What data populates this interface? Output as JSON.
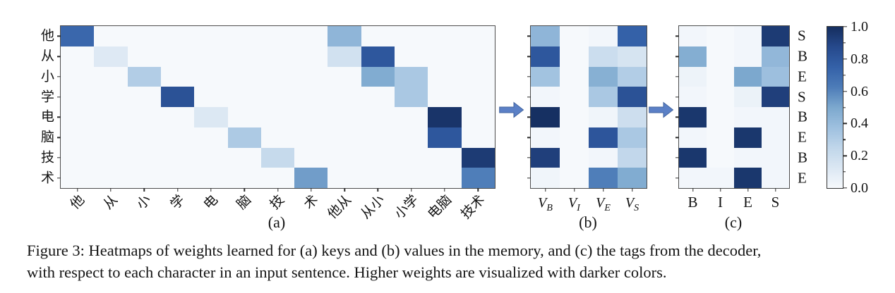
{
  "figure": {
    "caption": {
      "line1": "Figure 3: Heatmaps of weights learned for (a) keys and (b) values in the memory, and (c) the tags from the decoder,",
      "line2": "with respect to each character in an input sentence. Higher weights are visualized with darker colors."
    }
  },
  "colors": {
    "background": "#ffffff",
    "plot_border": "#4d4d4d",
    "tick": "#2b2b2b",
    "text": "#131313",
    "arrow_fill": "#5b80c6",
    "arrow_stroke": "#41639f",
    "colormap_stops": [
      "#f6f9fc",
      "#dbe7f3",
      "#c0d6ea",
      "#9ec0df",
      "#7ca8ce",
      "#4d7cb8",
      "#3461a8",
      "#26498c",
      "#152e5e"
    ]
  },
  "chart_data": [
    {
      "id": "a",
      "type": "heatmap",
      "label": "(a)",
      "name": "keys",
      "rows": [
        "他",
        "从",
        "小",
        "学",
        "电",
        "脑",
        "技",
        "术"
      ],
      "columns": [
        "他",
        "从",
        "小",
        "学",
        "电",
        "脑",
        "技",
        "术",
        "他从",
        "从小",
        "小学",
        "电脑",
        "技术"
      ],
      "values": [
        [
          0.72,
          0,
          0,
          0,
          0,
          0,
          0,
          0,
          0.43,
          0,
          0,
          0,
          0
        ],
        [
          0,
          0.11,
          0,
          0,
          0,
          0,
          0,
          0,
          0.17,
          0.8,
          0,
          0,
          0
        ],
        [
          0,
          0,
          0.3,
          0,
          0,
          0,
          0,
          0,
          0,
          0.48,
          0.33,
          0,
          0
        ],
        [
          0,
          0,
          0,
          0.83,
          0,
          0,
          0,
          0,
          0,
          0,
          0.33,
          0,
          0
        ],
        [
          0,
          0,
          0,
          0,
          0.12,
          0,
          0,
          0,
          0,
          0,
          0,
          0.97,
          0
        ],
        [
          0,
          0,
          0,
          0,
          0,
          0.32,
          0,
          0,
          0,
          0,
          0,
          0.8,
          0
        ],
        [
          0,
          0,
          0,
          0,
          0,
          0,
          0.22,
          0,
          0,
          0,
          0,
          0,
          0.94
        ],
        [
          0,
          0,
          0,
          0,
          0,
          0,
          0,
          0.53,
          0,
          0,
          0,
          0,
          0.62
        ]
      ]
    },
    {
      "id": "b",
      "type": "heatmap",
      "label": "(b)",
      "name": "values-in-memory",
      "columns": [
        "V_B",
        "V_I",
        "V_E",
        "V_S"
      ],
      "values": [
        [
          0.43,
          0,
          0.02,
          0.75
        ],
        [
          0.8,
          0,
          0.2,
          0.15
        ],
        [
          0.36,
          0,
          0.46,
          0.3
        ],
        [
          0.02,
          0,
          0.33,
          0.83
        ],
        [
          0.99,
          0,
          0.03,
          0.19
        ],
        [
          0.02,
          0,
          0.81,
          0.33
        ],
        [
          0.92,
          0,
          0.02,
          0.24
        ],
        [
          0.03,
          0,
          0.62,
          0.48
        ]
      ]
    },
    {
      "id": "c",
      "type": "heatmap",
      "label": "(c)",
      "name": "decoder-tags",
      "columns": [
        "B",
        "I",
        "E",
        "S"
      ],
      "row_labels_right": [
        "S",
        "B",
        "E",
        "S",
        "B",
        "E",
        "B",
        "E"
      ],
      "values": [
        [
          0.02,
          0,
          0.02,
          0.94
        ],
        [
          0.47,
          0,
          0.02,
          0.42
        ],
        [
          0.04,
          0,
          0.5,
          0.38
        ],
        [
          0.02,
          0,
          0.05,
          0.92
        ],
        [
          0.96,
          0,
          0.02,
          0.02
        ],
        [
          0.02,
          0,
          0.96,
          0.02
        ],
        [
          0.96,
          0,
          0.02,
          0.02
        ],
        [
          0.02,
          0.02,
          0.96,
          0.02
        ]
      ]
    }
  ],
  "colorbar": {
    "min": 0.0,
    "max": 1.0,
    "ticks": [
      {
        "value": 1.0,
        "label": "1.0"
      },
      {
        "value": 0.8,
        "label": "0.8"
      },
      {
        "value": 0.6,
        "label": "0.6"
      },
      {
        "value": 0.4,
        "label": "0.4"
      },
      {
        "value": 0.2,
        "label": "0.2"
      },
      {
        "value": 0.0,
        "label": "0.0"
      }
    ],
    "minor_ticks": [
      0.9,
      0.7,
      0.5,
      0.3,
      0.1
    ]
  }
}
